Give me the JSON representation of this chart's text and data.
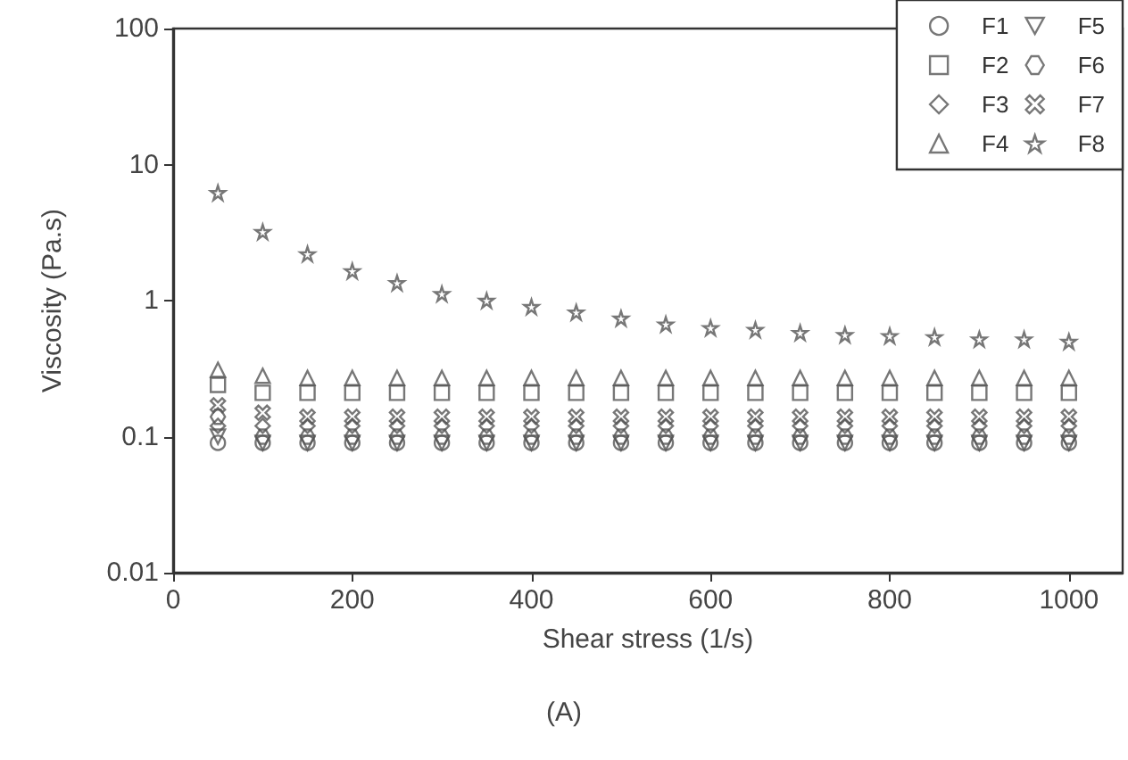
{
  "chart_data": {
    "type": "scatter",
    "xlabel": "Shear stress (1/s)",
    "ylabel": "Viscosity (Pa.s)",
    "annotations": [
      "(A)"
    ],
    "x": [
      50,
      100,
      150,
      200,
      250,
      300,
      350,
      400,
      450,
      500,
      550,
      600,
      650,
      700,
      750,
      800,
      850,
      900,
      950,
      1000
    ],
    "xlim": [
      0,
      1060
    ],
    "xticks": [
      0,
      200,
      400,
      600,
      800,
      1000
    ],
    "ylim": [
      0.01,
      100
    ],
    "yticks": [
      0.01,
      0.1,
      1,
      10,
      100
    ],
    "log": "y",
    "grid": false,
    "legend": "top right",
    "series": [
      {
        "name": "F1",
        "color": "#555555",
        "marker": "circle",
        "values": [
          0.09,
          0.09,
          0.09,
          0.09,
          0.09,
          0.09,
          0.09,
          0.09,
          0.09,
          0.09,
          0.09,
          0.09,
          0.09,
          0.09,
          0.09,
          0.09,
          0.09,
          0.09,
          0.09,
          0.09
        ]
      },
      {
        "name": "F2",
        "color": "#555555",
        "marker": "square",
        "values": [
          0.24,
          0.21,
          0.21,
          0.21,
          0.21,
          0.21,
          0.21,
          0.21,
          0.21,
          0.21,
          0.21,
          0.21,
          0.21,
          0.21,
          0.21,
          0.21,
          0.21,
          0.21,
          0.21,
          0.21
        ]
      },
      {
        "name": "F3",
        "color": "#555555",
        "marker": "diamond",
        "values": [
          0.12,
          0.12,
          0.12,
          0.12,
          0.12,
          0.12,
          0.12,
          0.12,
          0.12,
          0.12,
          0.12,
          0.12,
          0.12,
          0.12,
          0.12,
          0.12,
          0.12,
          0.12,
          0.12,
          0.12
        ]
      },
      {
        "name": "F4",
        "color": "#555555",
        "marker": "triangle",
        "values": [
          0.31,
          0.28,
          0.27,
          0.27,
          0.27,
          0.27,
          0.27,
          0.27,
          0.27,
          0.27,
          0.27,
          0.27,
          0.27,
          0.27,
          0.27,
          0.27,
          0.27,
          0.27,
          0.27,
          0.27
        ]
      },
      {
        "name": "F5",
        "color": "#555555",
        "values": [
          0.1,
          0.09,
          0.09,
          0.09,
          0.09,
          0.09,
          0.09,
          0.09,
          0.09,
          0.09,
          0.09,
          0.09,
          0.09,
          0.09,
          0.09,
          0.09,
          0.09,
          0.09,
          0.09,
          0.09
        ]
      },
      {
        "name": "F6",
        "color": "#555555",
        "values": [
          0.14,
          0.1,
          0.1,
          0.1,
          0.1,
          0.1,
          0.1,
          0.1,
          0.1,
          0.1,
          0.1,
          0.1,
          0.1,
          0.1,
          0.1,
          0.1,
          0.1,
          0.1,
          0.1,
          0.1
        ]
      },
      {
        "name": "F7",
        "color": "#555555",
        "marker": "cross",
        "values": [
          0.17,
          0.15,
          0.14,
          0.14,
          0.14,
          0.14,
          0.14,
          0.14,
          0.14,
          0.14,
          0.14,
          0.14,
          0.14,
          0.14,
          0.14,
          0.14,
          0.14,
          0.14,
          0.14,
          0.14
        ]
      },
      {
        "name": "F8",
        "color": "#555555",
        "marker": "star",
        "values": [
          6.2,
          3.2,
          2.2,
          1.65,
          1.35,
          1.12,
          1.0,
          0.9,
          0.82,
          0.74,
          0.67,
          0.63,
          0.61,
          0.58,
          0.56,
          0.55,
          0.54,
          0.52,
          0.52,
          0.5
        ]
      }
    ]
  }
}
